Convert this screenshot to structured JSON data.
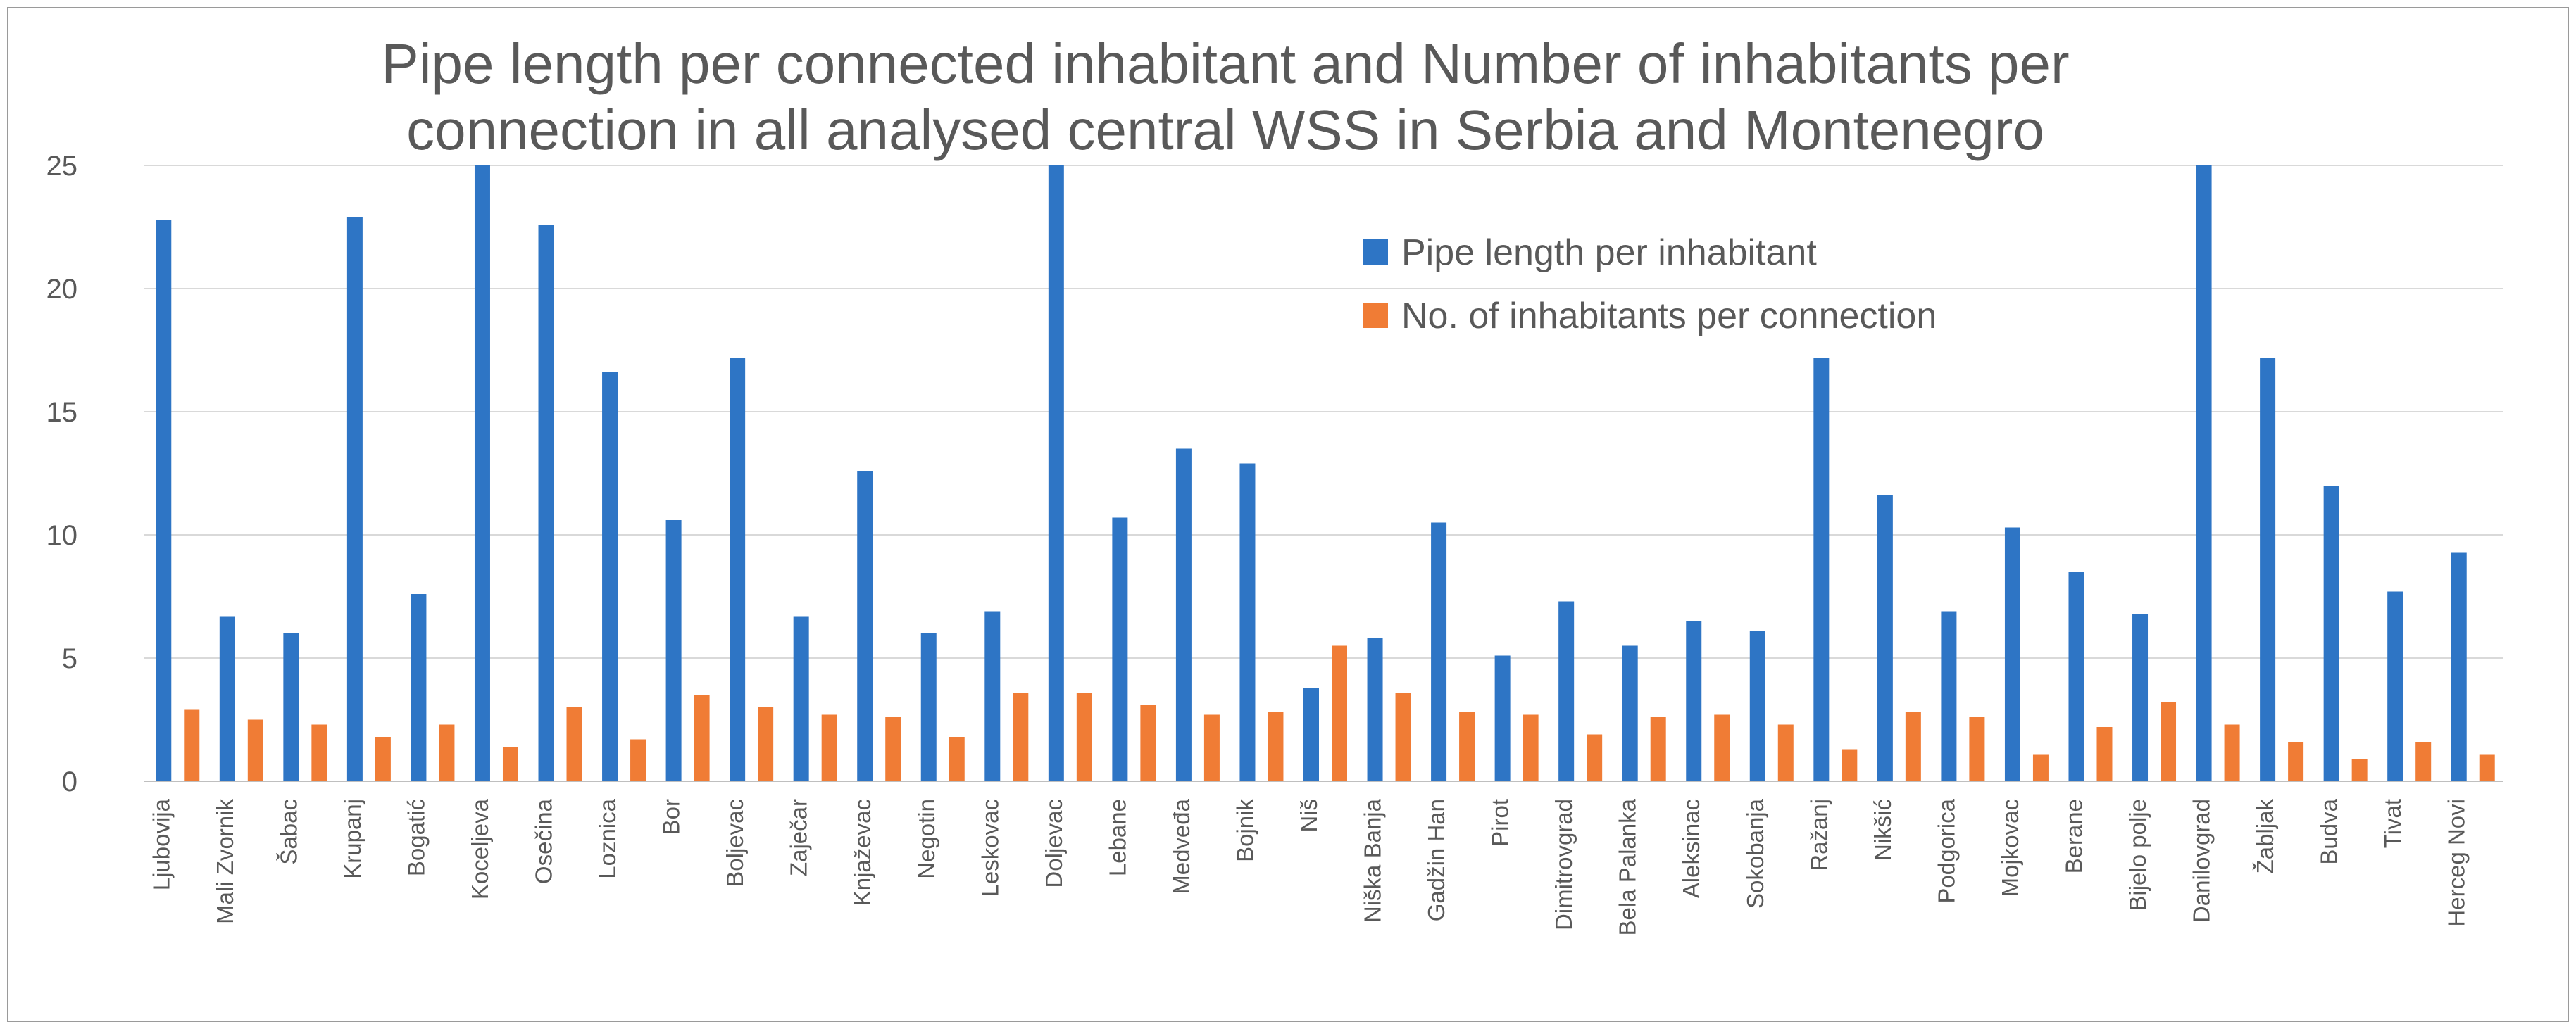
{
  "chart_data": {
    "type": "bar",
    "title_lines": [
      "Pipe length per connected inhabitant and Number of inhabitants per",
      "connection in all analysed central WSS in Serbia and Montenegro"
    ],
    "xlabel": "",
    "ylabel": "",
    "ylim": [
      0,
      25
    ],
    "yticks": [
      "0",
      "5",
      "10",
      "15",
      "20",
      "25"
    ],
    "grid": true,
    "legend_position": "top-right",
    "categories": [
      "Ljubovija",
      "Mali Zvornik",
      "Šabac",
      "Krupanj",
      "Bogatić",
      "Koceljeva",
      "Osečina",
      "Loznica",
      "Bor",
      "Boljevac",
      "Zaječar",
      "Knjaževac",
      "Negotin",
      "Leskovac",
      "Doljevac",
      "Lebane",
      "Medveđa",
      "Bojnik",
      "Niš",
      "Niška Banja",
      "Gadžin Han",
      "Pirot",
      "Dimitrovgrad",
      "Bela Palanka",
      "Aleksinac",
      "Sokobanja",
      "Ražanj",
      "Nikšić",
      "Podgorica",
      "Mojkovac",
      "Berane",
      "Bijelo polje",
      "Danilovgrad",
      "Žabljak",
      "Budva",
      "Tivat",
      "Herceg Novi"
    ],
    "series": [
      {
        "name": "Pipe length per inhabitant",
        "color": "#2e75c5",
        "values": [
          22.8,
          6.7,
          6.0,
          22.9,
          7.6,
          25,
          22.6,
          16.6,
          10.6,
          17.2,
          6.7,
          12.6,
          6.0,
          6.9,
          25,
          10.7,
          13.5,
          12.9,
          3.8,
          5.8,
          10.5,
          5.1,
          7.3,
          5.5,
          6.5,
          6.1,
          17.2,
          11.6,
          6.9,
          10.3,
          8.5,
          6.8,
          25,
          17.2,
          12.0,
          7.7,
          9.3
        ]
      },
      {
        "name": "No. of inhabitants per connection",
        "color": "#f07c35",
        "values": [
          2.9,
          2.5,
          2.3,
          1.8,
          2.3,
          1.4,
          3.0,
          1.7,
          3.5,
          3.0,
          2.7,
          2.6,
          1.8,
          3.6,
          3.6,
          3.1,
          2.7,
          2.8,
          5.5,
          3.6,
          2.8,
          2.7,
          1.9,
          2.6,
          2.7,
          2.3,
          1.3,
          2.8,
          2.6,
          1.1,
          2.2,
          3.2,
          2.3,
          1.6,
          0.9,
          1.6,
          1.1
        ]
      }
    ]
  }
}
